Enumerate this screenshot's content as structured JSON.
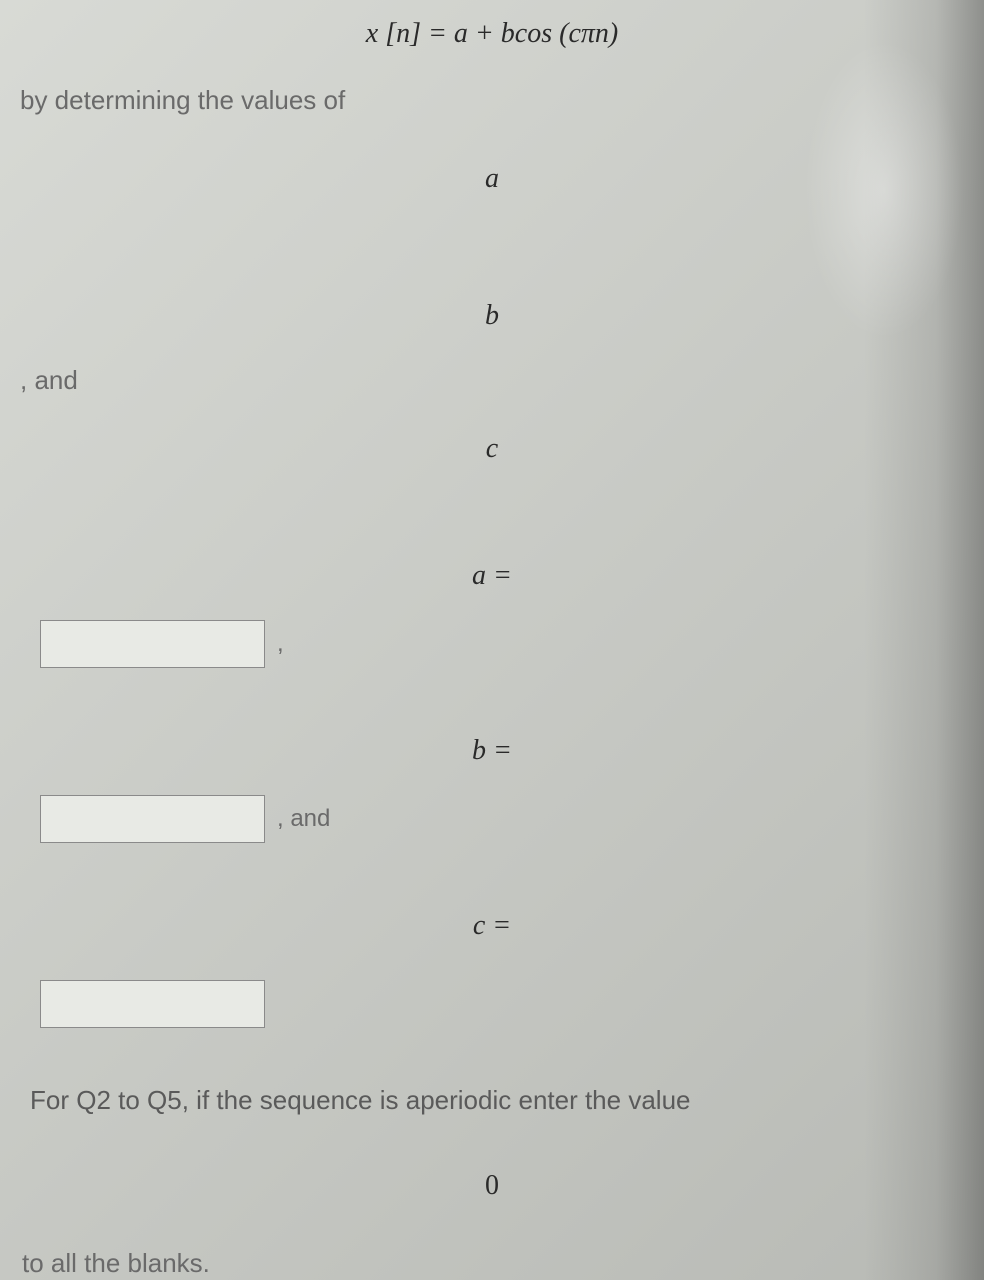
{
  "equation": "x [n] = a + bcos (cπn)",
  "intro": "by determining the values of",
  "vars": {
    "a": "a",
    "b": "b",
    "c": "c"
  },
  "eqs": {
    "a": "a  =",
    "b": "b =",
    "c": "c ="
  },
  "connectors": {
    "comma_and": ", and",
    "comma": ",",
    "and_after": ", and"
  },
  "note": "For Q2 to Q5, if the sequence is aperiodic enter the value",
  "zero": "0",
  "tail": "to all the blanks.",
  "inputs": {
    "val1": "",
    "val2": "",
    "val3": ""
  }
}
